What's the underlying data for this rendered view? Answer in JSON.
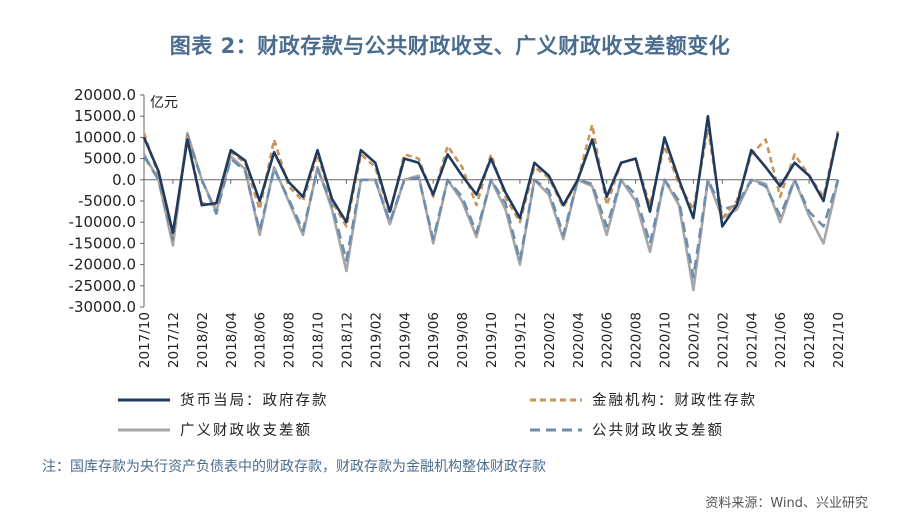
{
  "title": "图表 2：财政存款与公共财政收支、广义财政收支差额变化",
  "note": "注：国库存款为央行资产负债表中的财政存款，财政存款为金融机构整体财政存款",
  "source": "资料来源：Wind、兴业研究",
  "chart_data": {
    "type": "line",
    "unit_label": "亿元",
    "ylim": [
      -30000,
      20000
    ],
    "yticks": [
      "20000.0",
      "15000.0",
      "10000.0",
      "5000.0",
      "0.0",
      "-5000.0",
      "-10000.0",
      "-15000.0",
      "-20000.0",
      "-25000.0",
      "-30000.0"
    ],
    "x": [
      "2017/10",
      "2017/11",
      "2017/12",
      "2018/01",
      "2018/02",
      "2018/03",
      "2018/04",
      "2018/05",
      "2018/06",
      "2018/07",
      "2018/08",
      "2018/09",
      "2018/10",
      "2018/11",
      "2018/12",
      "2019/01",
      "2019/02",
      "2019/03",
      "2019/04",
      "2019/05",
      "2019/06",
      "2019/07",
      "2019/08",
      "2019/09",
      "2019/10",
      "2019/11",
      "2019/12",
      "2020/01",
      "2020/02",
      "2020/03",
      "2020/04",
      "2020/05",
      "2020/06",
      "2020/07",
      "2020/08",
      "2020/09",
      "2020/10",
      "2020/11",
      "2020/12",
      "2021/01",
      "2021/02",
      "2021/03",
      "2021/04",
      "2021/05",
      "2021/06",
      "2021/07",
      "2021/08",
      "2021/09",
      "2021/10"
    ],
    "xtick_labels": [
      "2017/10",
      "2017/12",
      "2018/02",
      "2018/04",
      "2018/06",
      "2018/08",
      "2018/10",
      "2018/12",
      "2019/02",
      "2019/04",
      "2019/06",
      "2019/08",
      "2019/10",
      "2019/12",
      "2020/02",
      "2020/04",
      "2020/06",
      "2020/08",
      "2020/10",
      "2020/12",
      "2021/02",
      "2021/04",
      "2021/06",
      "2021/08",
      "2021/10"
    ],
    "legend_position": "bottom",
    "series": [
      {
        "name": "货币当局：政府存款",
        "color": "#1f3a5f",
        "dash": "solid",
        "values": [
          10000,
          2000,
          -12500,
          9500,
          -6000,
          -5500,
          7000,
          4500,
          -5000,
          6500,
          -500,
          -4000,
          7000,
          -4500,
          -10000,
          7000,
          4000,
          -7500,
          5000,
          4000,
          -3500,
          6000,
          1000,
          -3500,
          5000,
          -3000,
          -9000,
          4000,
          1000,
          -6000,
          0,
          9500,
          -4000,
          4000,
          5000,
          -7500,
          10000,
          0,
          -9000,
          15000,
          -11000,
          -6000,
          7000,
          3000,
          -1500,
          4000,
          1000,
          -5000,
          11000
        ]
      },
      {
        "name": "金融机构：财政性存款",
        "color": "#c9965a",
        "dash": "dashed",
        "values": [
          11000,
          1000,
          -13000,
          10000,
          -5500,
          -6000,
          6500,
          4000,
          -7000,
          9500,
          -1500,
          -5000,
          6000,
          -5000,
          -11000,
          6000,
          3000,
          -8000,
          6000,
          5000,
          -4000,
          8000,
          3000,
          -6000,
          6000,
          -4000,
          -10000,
          3000,
          500,
          -6500,
          0,
          13000,
          -6000,
          4000,
          5000,
          -6000,
          8000,
          -1000,
          -7000,
          12000,
          -9000,
          -5000,
          6000,
          9500,
          -4000,
          6000,
          1000,
          -4000,
          11500
        ]
      },
      {
        "name": "广义财政收支差额",
        "color": "#a6a6a6",
        "dash": "solid",
        "values": [
          6000,
          0,
          -15500,
          11000,
          0,
          -7500,
          5500,
          2500,
          -13000,
          3000,
          -5000,
          -13000,
          3000,
          -7000,
          -21500,
          0,
          0,
          -10500,
          0,
          1000,
          -15000,
          0,
          -5000,
          -13500,
          0,
          -7000,
          -20000,
          0,
          -3500,
          -14000,
          0,
          -1500,
          -13000,
          0,
          -5000,
          -17000,
          0,
          -6000,
          -26000,
          0,
          -9000,
          -7000,
          0,
          -1000,
          -10000,
          0,
          -8500,
          -15000,
          0
        ]
      },
      {
        "name": "公共财政收支差额",
        "color": "#6b8db0",
        "dash": "dashed",
        "values": [
          5500,
          0,
          -14000,
          10500,
          0,
          -8000,
          5000,
          2000,
          -12000,
          2500,
          -4500,
          -12000,
          2500,
          -6000,
          -19000,
          0,
          0,
          -10000,
          0,
          500,
          -14000,
          0,
          -4000,
          -12500,
          0,
          -5500,
          -19000,
          0,
          -2500,
          -13000,
          0,
          -1000,
          -11000,
          0,
          -3500,
          -15000,
          0,
          -5000,
          -23000,
          0,
          -7000,
          -6000,
          0,
          -1500,
          -8500,
          0,
          -7500,
          -11000,
          0
        ]
      }
    ]
  }
}
